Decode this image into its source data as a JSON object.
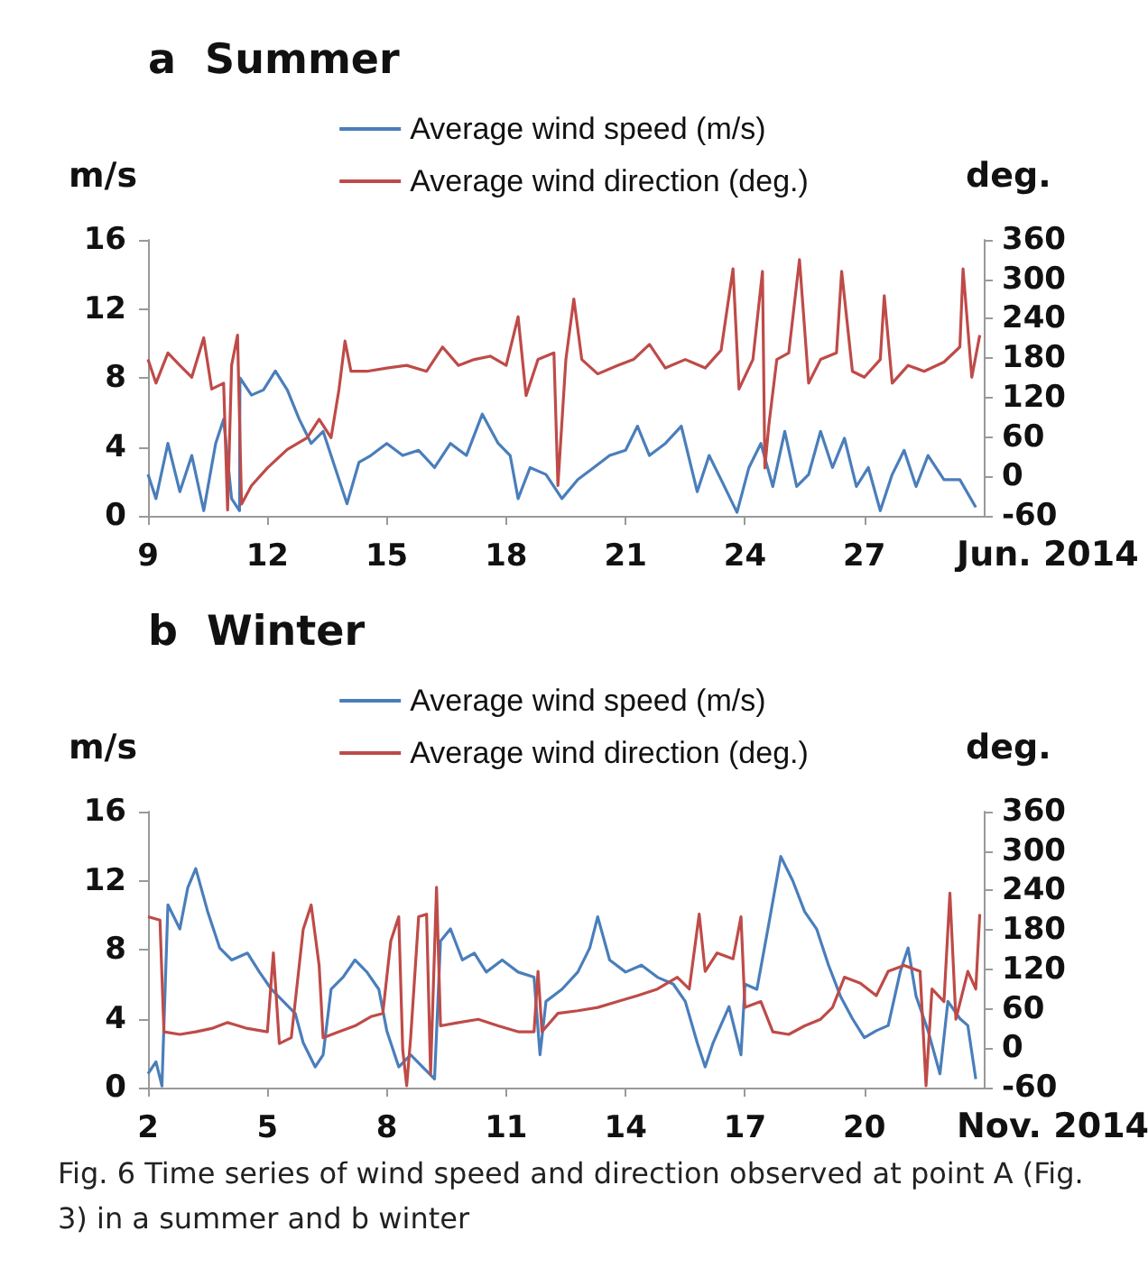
{
  "chart_data": [
    {
      "type": "line",
      "title": "a  Summer",
      "ylabel": "m/s",
      "y2label": "deg.",
      "xlabel": "Jun. 2014",
      "xlim": [
        9,
        30
      ],
      "xticks": [
        9,
        12,
        15,
        18,
        21,
        24,
        27
      ],
      "ylim": [
        0,
        16
      ],
      "yticks": [
        0,
        4,
        8,
        12,
        16
      ],
      "y2lim": [
        -60,
        360
      ],
      "y2ticks": [
        -60,
        0,
        60,
        120,
        180,
        240,
        300,
        360
      ],
      "grid": false,
      "legend": "top",
      "series": [
        {
          "name": "Average wind speed (m/s)",
          "color": "#4a7ebb",
          "x": [
            9,
            9.2,
            9.5,
            9.8,
            10.1,
            10.4,
            10.7,
            10.9,
            11.1,
            11.3,
            11.31,
            11.6,
            11.9,
            12.2,
            12.5,
            12.8,
            13.1,
            13.4,
            13.7,
            14,
            14.3,
            14.6,
            15,
            15.4,
            15.8,
            16.2,
            16.6,
            17,
            17.4,
            17.8,
            18.1,
            18.3,
            18.6,
            19,
            19.4,
            19.8,
            20.2,
            20.6,
            21,
            21.3,
            21.6,
            22,
            22.4,
            22.8,
            23.1,
            23.4,
            23.8,
            24.1,
            24.4,
            24.7,
            25,
            25.3,
            25.6,
            25.9,
            26.2,
            26.5,
            26.8,
            27.1,
            27.4,
            27.7,
            28,
            28.3,
            28.6,
            29,
            29.4,
            29.8
          ],
          "values": [
            2.4,
            1,
            4.2,
            1.4,
            3.5,
            0.3,
            4.2,
            5.6,
            1,
            0.3,
            8,
            7,
            7.3,
            8.4,
            7.3,
            5.6,
            4.2,
            4.9,
            2.8,
            0.7,
            3.1,
            3.5,
            4.2,
            3.5,
            3.8,
            2.8,
            4.2,
            3.5,
            5.9,
            4.2,
            3.5,
            1,
            2.8,
            2.4,
            1,
            2.1,
            2.8,
            3.5,
            3.8,
            5.2,
            3.5,
            4.2,
            5.2,
            1.4,
            3.5,
            2.1,
            0.2,
            2.8,
            4.2,
            1.7,
            4.9,
            1.7,
            2.4,
            4.9,
            2.8,
            4.5,
            1.7,
            2.8,
            0.3,
            2.4,
            3.8,
            1.7,
            3.5,
            2.1,
            2.1,
            0.5
          ]
        },
        {
          "name": "Average wind direction (deg.)",
          "color": "#be4b48",
          "axis": "y2",
          "x": [
            9,
            9.2,
            9.5,
            9.8,
            10.1,
            10.4,
            10.6,
            10.9,
            11,
            11.1,
            11.25,
            11.35,
            11.6,
            12,
            12.5,
            13,
            13.3,
            13.6,
            13.8,
            13.95,
            14.1,
            14.5,
            15,
            15.5,
            16,
            16.4,
            16.8,
            17.2,
            17.6,
            18,
            18.3,
            18.5,
            18.8,
            19.2,
            19.3,
            19.5,
            19.7,
            19.9,
            20.3,
            20.8,
            21.2,
            21.6,
            22,
            22.5,
            23,
            23.4,
            23.7,
            23.85,
            24.2,
            24.44,
            24.5,
            24.6,
            24.8,
            25.1,
            25.37,
            25.6,
            25.9,
            26.3,
            26.43,
            26.7,
            27,
            27.4,
            27.5,
            27.7,
            28.1,
            28.5,
            29,
            29.4,
            29.48,
            29.7,
            29.9
          ],
          "values": [
            178,
            142,
            188,
            169,
            151,
            211,
            133,
            142,
            -51,
            169,
            215,
            -42,
            -14,
            13,
            41,
            59,
            87,
            59,
            133,
            206,
            160,
            160,
            165,
            169,
            160,
            197,
            169,
            178,
            183,
            169,
            243,
            123,
            178,
            188,
            -14,
            178,
            270,
            178,
            156,
            169,
            178,
            201,
            165,
            178,
            165,
            192,
            316,
            133,
            178,
            312,
            13,
            78,
            178,
            188,
            330,
            142,
            178,
            188,
            312,
            160,
            151,
            178,
            275,
            142,
            169,
            160,
            174,
            197,
            316,
            151,
            215
          ]
        }
      ]
    },
    {
      "type": "line",
      "title": "b  Winter",
      "ylabel": "m/s",
      "y2label": "deg.",
      "xlabel": "Nov. 2014",
      "xlim": [
        2,
        23
      ],
      "xticks": [
        2,
        5,
        8,
        11,
        14,
        17,
        20
      ],
      "ylim": [
        0,
        16
      ],
      "yticks": [
        0,
        4,
        8,
        12,
        16
      ],
      "y2lim": [
        -60,
        360
      ],
      "y2ticks": [
        -60,
        0,
        60,
        120,
        180,
        240,
        300,
        360
      ],
      "grid": false,
      "legend": "top",
      "annotations": [
        "Fig. 6  Time series of wind speed and direction observed at point A (Fig. 3) in a summer and b winter"
      ],
      "series": [
        {
          "name": "Average wind speed (m/s)",
          "color": "#4a7ebb",
          "x": [
            2,
            2.2,
            2.35,
            2.5,
            2.8,
            3,
            3.2,
            3.5,
            3.8,
            4.1,
            4.5,
            4.8,
            5.1,
            5.4,
            5.7,
            5.9,
            6.2,
            6.4,
            6.6,
            6.9,
            7.2,
            7.5,
            7.8,
            8,
            8.3,
            8.6,
            8.9,
            9.2,
            9.35,
            9.6,
            9.9,
            10.2,
            10.5,
            10.9,
            11.3,
            11.7,
            11.85,
            12,
            12.4,
            12.8,
            13.1,
            13.3,
            13.6,
            14,
            14.4,
            14.8,
            15.2,
            15.5,
            15.8,
            16,
            16.2,
            16.6,
            16.9,
            17,
            17.3,
            17.6,
            17.9,
            18.2,
            18.5,
            18.8,
            19.1,
            19.4,
            19.7,
            20,
            20.3,
            20.6,
            20.9,
            21.1,
            21.3,
            21.6,
            21.9,
            22.1,
            22.4,
            22.6,
            22.8
          ],
          "values": [
            0.8,
            1.5,
            0.1,
            10.6,
            9.2,
            11.6,
            12.7,
            10.2,
            8.1,
            7.4,
            7.8,
            6.7,
            5.7,
            5,
            4.3,
            2.6,
            1.2,
            1.9,
            5.7,
            6.4,
            7.4,
            6.7,
            5.7,
            3.3,
            1.2,
            1.9,
            1.2,
            0.5,
            8.5,
            9.2,
            7.4,
            7.8,
            6.7,
            7.4,
            6.7,
            6.4,
            1.9,
            5,
            5.7,
            6.7,
            8.1,
            9.9,
            7.4,
            6.7,
            7.1,
            6.4,
            6,
            5,
            2.6,
            1.2,
            2.6,
            4.7,
            1.9,
            6,
            5.7,
            9.5,
            13.4,
            12,
            10.2,
            9.2,
            7.1,
            5.3,
            4,
            2.9,
            3.3,
            3.6,
            6.7,
            8.1,
            5.3,
            3.3,
            0.8,
            5,
            4,
            3.6,
            0.5
          ]
        },
        {
          "name": "Average wind direction (deg.)",
          "color": "#be4b48",
          "axis": "y2",
          "x": [
            2,
            2.3,
            2.4,
            2.8,
            3.2,
            3.6,
            4,
            4.5,
            5,
            5.15,
            5.3,
            5.6,
            5.9,
            6.1,
            6.3,
            6.4,
            6.8,
            7.2,
            7.6,
            7.9,
            8.1,
            8.3,
            8.4,
            8.5,
            8.6,
            8.8,
            9,
            9.1,
            9.25,
            9.35,
            9.8,
            10.3,
            10.8,
            11.3,
            11.7,
            11.8,
            11.9,
            12.3,
            12.8,
            13.3,
            13.8,
            14.3,
            14.8,
            15.3,
            15.6,
            15.85,
            16,
            16.3,
            16.7,
            16.9,
            17,
            17.4,
            17.7,
            18.1,
            18.5,
            18.9,
            19.2,
            19.5,
            19.9,
            20.3,
            20.6,
            21,
            21.4,
            21.55,
            21.7,
            22,
            22.15,
            22.3,
            22.6,
            22.8,
            22.9
          ],
          "values": [
            200,
            195,
            25,
            21,
            25,
            30,
            39,
            30,
            25,
            145,
            7,
            16,
            181,
            218,
            126,
            16,
            25,
            34,
            48,
            53,
            163,
            200,
            -2,
            -57,
            16,
            200,
            204,
            -39,
            245,
            34,
            39,
            44,
            34,
            25,
            25,
            117,
            25,
            53,
            57,
            62,
            71,
            80,
            90,
            108,
            90,
            204,
            117,
            145,
            136,
            200,
            62,
            71,
            25,
            21,
            34,
            44,
            62,
            108,
            99,
            80,
            117,
            126,
            117,
            -57,
            90,
            71,
            236,
            44,
            117,
            90,
            204
          ]
        }
      ]
    }
  ]
}
